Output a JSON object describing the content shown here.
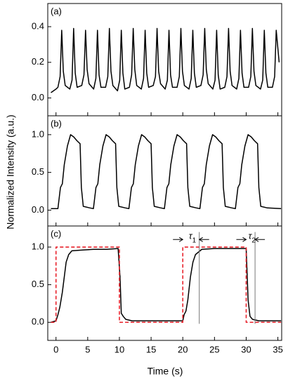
{
  "xlabel": "Time (s)",
  "ylabel": "Normalized Intensity (a.u.)",
  "chart_data": [
    {
      "type": "line",
      "title": "(a)",
      "xlim": [
        -1.3,
        35.6
      ],
      "xticks": [
        0,
        5,
        10,
        15,
        20,
        25,
        30,
        35
      ],
      "ylim": [
        -0.1,
        0.53
      ],
      "yticks": [
        {
          "value": 0,
          "label": "0.0"
        },
        {
          "value": 0.2,
          "label": "0.2"
        },
        {
          "value": 0.4,
          "label": "0.4"
        }
      ],
      "series": [
        {
          "color": "#000000",
          "dashed": false,
          "x": [
            -0.8,
            0,
            0.3,
            0.65,
            0.9,
            1.15,
            1.45,
            2.18,
            2.53,
            2.78,
            3.03,
            3.33,
            4.06,
            4.41,
            4.66,
            4.91,
            5.21,
            5.94,
            6.29,
            6.54,
            6.79,
            7.09,
            7.82,
            8.17,
            8.42,
            8.67,
            8.97,
            9.7,
            10.05,
            10.3,
            10.55,
            10.85,
            11.58,
            11.93,
            12.18,
            12.43,
            12.73,
            13.46,
            13.81,
            14.06,
            14.31,
            14.61,
            15.34,
            15.69,
            15.94,
            16.19,
            16.49,
            17.22,
            17.57,
            17.82,
            18.07,
            18.37,
            19.1,
            19.45,
            19.7,
            19.95,
            20.25,
            20.98,
            21.33,
            21.58,
            21.83,
            22.13,
            22.86,
            23.21,
            23.46,
            23.71,
            24.01,
            24.74,
            25.09,
            25.34,
            25.59,
            25.89,
            26.62,
            26.97,
            27.22,
            27.47,
            27.77,
            28.5,
            28.85,
            29.1,
            29.35,
            29.65,
            30.38,
            30.73,
            30.98,
            31.23,
            31.53,
            32.26,
            32.61,
            32.86,
            33.11,
            33.41,
            34.14,
            34.49,
            34.74,
            35.2
          ],
          "values": [
            0.03,
            0.05,
            0.06,
            0.12,
            0.38,
            0.15,
            0.07,
            0.05,
            0.1,
            0.39,
            0.14,
            0.06,
            0.07,
            0.13,
            0.38,
            0.16,
            0.08,
            0.05,
            0.11,
            0.38,
            0.13,
            0.06,
            0.06,
            0.12,
            0.39,
            0.15,
            0.07,
            0.04,
            0.1,
            0.38,
            0.14,
            0.05,
            0.06,
            0.13,
            0.39,
            0.16,
            0.07,
            0.05,
            0.11,
            0.38,
            0.14,
            0.06,
            0.07,
            0.12,
            0.39,
            0.15,
            0.08,
            0.05,
            0.1,
            0.38,
            0.13,
            0.06,
            0.06,
            0.12,
            0.39,
            0.15,
            0.07,
            0.05,
            0.11,
            0.38,
            0.14,
            0.06,
            0.07,
            0.13,
            0.39,
            0.16,
            0.08,
            0.05,
            0.1,
            0.38,
            0.13,
            0.05,
            0.06,
            0.12,
            0.39,
            0.15,
            0.07,
            0.05,
            0.11,
            0.38,
            0.14,
            0.06,
            0.06,
            0.12,
            0.39,
            0.15,
            0.07,
            0.05,
            0.1,
            0.38,
            0.14,
            0.06,
            0.06,
            0.12,
            0.38,
            0.2
          ]
        }
      ]
    },
    {
      "type": "line",
      "title": "(b)",
      "xlim": [
        -1.3,
        35.6
      ],
      "xticks": [
        0,
        5,
        10,
        15,
        20,
        25,
        30,
        35
      ],
      "ylim": [
        -0.21,
        1.25
      ],
      "yticks": [
        {
          "value": 0,
          "label": "0.0"
        },
        {
          "value": 0.5,
          "label": "0.5"
        },
        {
          "value": 1,
          "label": "1.0"
        }
      ],
      "series": [
        {
          "color": "#000000",
          "dashed": false,
          "x": [
            -0.8,
            0.3,
            0.7,
            1.0,
            1.3,
            1.8,
            2.3,
            2.8,
            3.3,
            3.8,
            4.0,
            4.3,
            5.3,
            5.9,
            6.3,
            6.6,
            6.9,
            7.4,
            7.9,
            8.4,
            8.9,
            9.4,
            9.6,
            9.9,
            10.9,
            11.5,
            11.9,
            12.2,
            12.5,
            13.0,
            13.5,
            14.0,
            14.5,
            15.0,
            15.2,
            15.5,
            16.5,
            17.1,
            17.5,
            17.8,
            18.1,
            18.6,
            19.1,
            19.6,
            20.1,
            20.6,
            20.8,
            21.1,
            22.1,
            22.7,
            23.1,
            23.4,
            23.7,
            24.2,
            24.7,
            25.2,
            25.7,
            26.2,
            26.4,
            26.7,
            27.7,
            28.3,
            28.7,
            29.0,
            29.3,
            29.8,
            30.3,
            30.8,
            31.3,
            31.8,
            32.0,
            32.3,
            33.3,
            35.5
          ],
          "values": [
            0.02,
            0.02,
            0.3,
            0.35,
            0.6,
            0.85,
            1.0,
            0.97,
            0.92,
            0.88,
            0.3,
            0.05,
            0.03,
            0.02,
            0.3,
            0.35,
            0.6,
            0.85,
            1.0,
            0.97,
            0.92,
            0.88,
            0.3,
            0.05,
            0.03,
            0.02,
            0.3,
            0.35,
            0.6,
            0.85,
            1.0,
            0.97,
            0.92,
            0.88,
            0.3,
            0.05,
            0.03,
            0.02,
            0.3,
            0.35,
            0.6,
            0.85,
            1.0,
            0.97,
            0.92,
            0.88,
            0.3,
            0.05,
            0.03,
            0.02,
            0.3,
            0.35,
            0.6,
            0.85,
            1.0,
            0.97,
            0.92,
            0.88,
            0.3,
            0.05,
            0.03,
            0.02,
            0.3,
            0.35,
            0.6,
            0.85,
            1.0,
            0.97,
            0.92,
            0.88,
            0.3,
            0.05,
            0.03,
            0.02
          ]
        }
      ]
    },
    {
      "type": "line",
      "title": "(c)",
      "xlim": [
        -1.3,
        35.6
      ],
      "xticks": [
        0,
        5,
        10,
        15,
        20,
        25,
        30,
        35
      ],
      "xticklabels": true,
      "ylim": [
        -0.24,
        1.28
      ],
      "yticks": [
        {
          "value": 0,
          "label": "0.0"
        },
        {
          "value": 0.5,
          "label": "0.5"
        },
        {
          "value": 1,
          "label": "1.0"
        }
      ],
      "series": [
        {
          "color": "#000000",
          "dashed": false,
          "x": [
            -0.8,
            0,
            0.3,
            0.6,
            1.0,
            1.6,
            2.0,
            2.5,
            4,
            6,
            8,
            9.8,
            10.1,
            10.3,
            10.6,
            11,
            12,
            15,
            18,
            20,
            20.2,
            20.5,
            20.8,
            21.2,
            21.6,
            22,
            23,
            25,
            28,
            30,
            30.3,
            30.6,
            31,
            32,
            35.5
          ],
          "values": [
            0.0,
            0.02,
            0.1,
            0.2,
            0.4,
            0.8,
            0.9,
            0.95,
            0.96,
            0.97,
            0.97,
            0.98,
            0.6,
            0.12,
            0.08,
            0.04,
            0.02,
            0.02,
            0.02,
            0.02,
            0.1,
            0.15,
            0.3,
            0.6,
            0.8,
            0.9,
            0.97,
            0.98,
            0.98,
            0.98,
            0.3,
            0.08,
            0.04,
            0.02,
            0.02
          ]
        },
        {
          "color": "#e8202a",
          "dashed": true,
          "x": [
            -0.8,
            0,
            0,
            10,
            10,
            20,
            20,
            30,
            30,
            35.5
          ],
          "values": [
            0,
            0,
            1,
            1,
            0,
            0,
            1,
            1,
            0,
            0
          ]
        }
      ],
      "annotations": [
        {
          "text": "τ1",
          "x": [
            20,
            22.6
          ],
          "y": 1.1
        },
        {
          "text": "τ2",
          "x": [
            30,
            31.4
          ],
          "y": 1.1
        }
      ]
    }
  ]
}
